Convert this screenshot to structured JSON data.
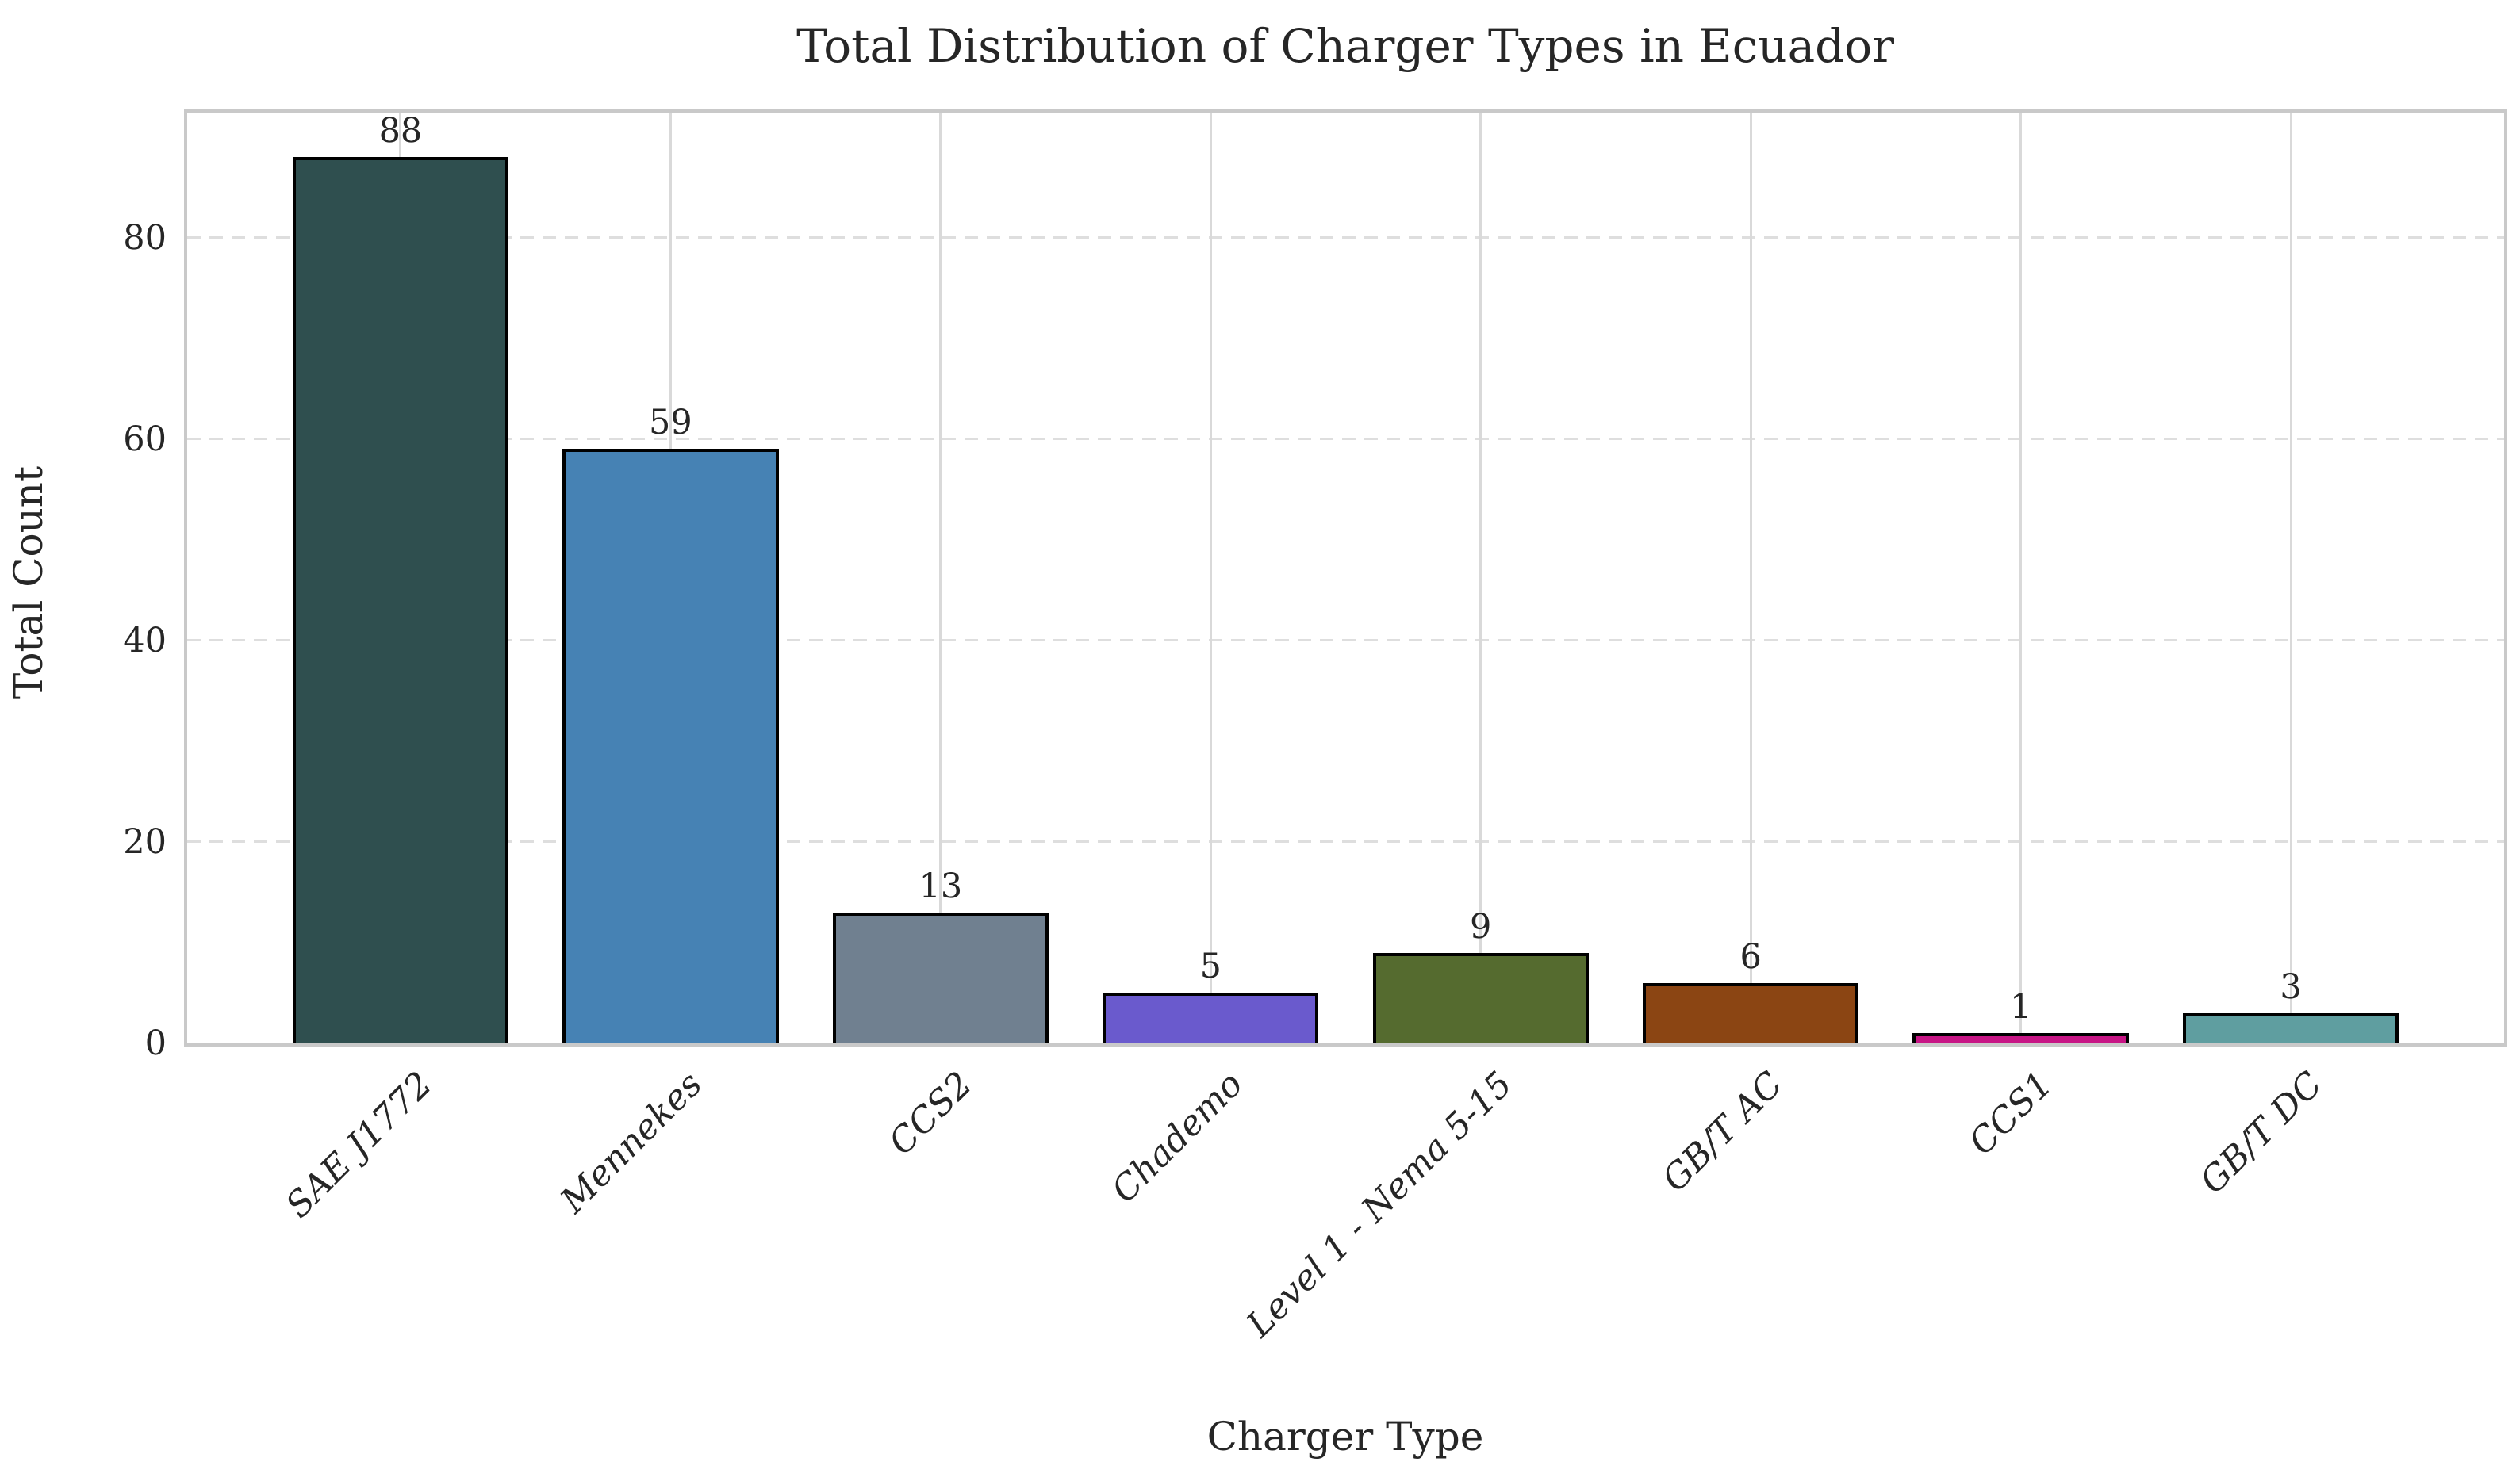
{
  "chart_data": {
    "type": "bar",
    "title": "Total Distribution of Charger Types in Ecuador",
    "xlabel": "Charger Type",
    "ylabel": "Total Count",
    "categories": [
      "SAE J1772",
      "Mennekes",
      "CCS2",
      "Chademo",
      "Level 1 - Nema 5-15",
      "GB/T AC",
      "CCS1",
      "GB/T DC"
    ],
    "values": [
      88,
      59,
      13,
      5,
      9,
      6,
      1,
      3
    ],
    "bar_colors": [
      "#2F4F4F",
      "#4682B4",
      "#708090",
      "#6A5ACD",
      "#556B2F",
      "#8B4513",
      "#C71585",
      "#5F9EA0"
    ],
    "bar_edge_color": "#000000",
    "value_labels_shown": true,
    "yticks": [
      0,
      20,
      40,
      60,
      80
    ],
    "ylim": [
      0,
      92.4
    ],
    "xlim": [
      -0.79,
      7.79
    ],
    "bar_width_units": 0.8,
    "grid": {
      "horizontal": "dashed",
      "vertical": "solid at bar centers"
    },
    "legend": "none",
    "colors": {
      "background": "#ffffff",
      "text": "#262626",
      "spine": "#c9c9c9",
      "vertical_grid": "#d9d9d9",
      "horizontal_grid": "#dedede"
    }
  }
}
